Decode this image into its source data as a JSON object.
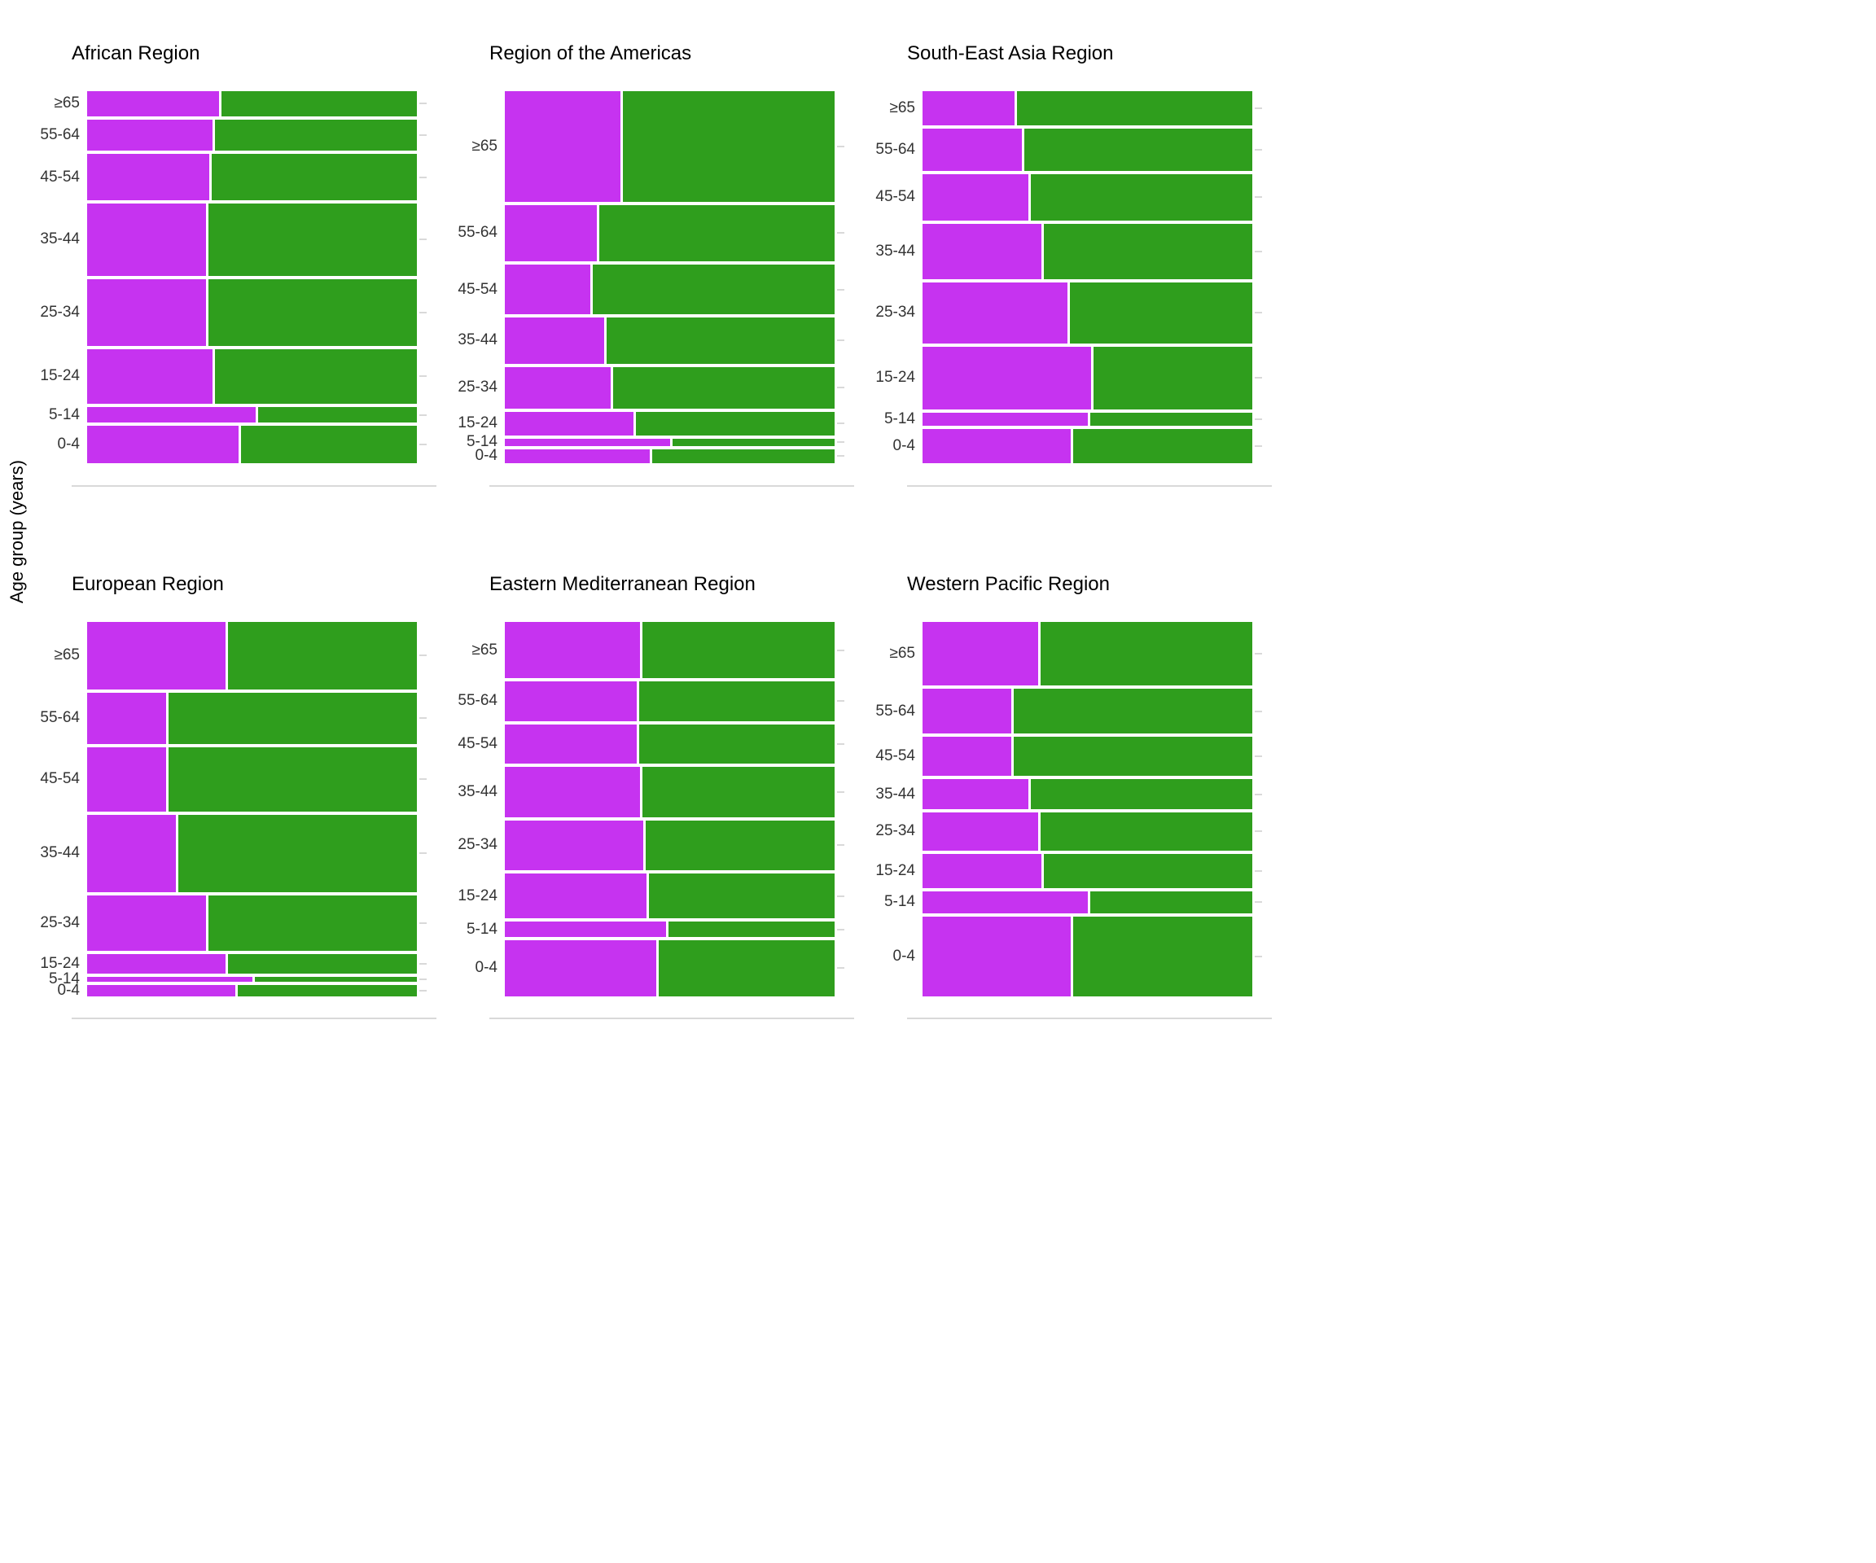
{
  "figure": {
    "ylabel": "Age group (years)",
    "colors": {
      "left_segment": "#C633F0",
      "right_segment": "#2F9E1D",
      "axis_text": "#333333",
      "grid": "#D9D9D9",
      "title_text": "#000000"
    }
  },
  "chart_data": {
    "type": "mosaic",
    "orientation": "horizontal-spine",
    "categories_top_to_bottom": [
      "≥65",
      "55-64",
      "45-54",
      "35-44",
      "25-34",
      "15-24",
      "5-14",
      "0-4"
    ],
    "segment_series": [
      "left-purple-share",
      "right-green-share"
    ],
    "panels": [
      {
        "title": "African Region",
        "row_height_fractions": [
          0.075,
          0.091,
          0.13,
          0.2,
          0.185,
          0.152,
          0.05,
          0.107
        ],
        "left_segment_fractions": [
          0.4,
          0.38,
          0.37,
          0.36,
          0.36,
          0.38,
          0.51,
          0.46
        ]
      },
      {
        "title": "Region of the Americas",
        "row_height_fractions": [
          0.3,
          0.158,
          0.14,
          0.13,
          0.118,
          0.072,
          0.027,
          0.046
        ],
        "left_segment_fractions": [
          0.35,
          0.28,
          0.26,
          0.3,
          0.32,
          0.39,
          0.5,
          0.44
        ]
      },
      {
        "title": "South-East Asia Region",
        "row_height_fractions": [
          0.098,
          0.122,
          0.13,
          0.155,
          0.17,
          0.175,
          0.042,
          0.1
        ],
        "left_segment_fractions": [
          0.28,
          0.3,
          0.32,
          0.36,
          0.44,
          0.51,
          0.5,
          0.45
        ]
      },
      {
        "title": "European Region",
        "row_height_fractions": [
          0.186,
          0.143,
          0.178,
          0.212,
          0.154,
          0.062,
          0.021,
          0.038
        ],
        "left_segment_fractions": [
          0.42,
          0.24,
          0.24,
          0.27,
          0.36,
          0.42,
          0.5,
          0.45
        ]
      },
      {
        "title": "Eastern Mediterranean Region",
        "row_height_fractions": [
          0.157,
          0.113,
          0.113,
          0.14,
          0.14,
          0.128,
          0.048,
          0.157
        ],
        "left_segment_fractions": [
          0.41,
          0.4,
          0.4,
          0.41,
          0.42,
          0.43,
          0.49,
          0.46
        ]
      },
      {
        "title": "Western Pacific Region",
        "row_height_fractions": [
          0.176,
          0.128,
          0.112,
          0.088,
          0.108,
          0.1,
          0.066,
          0.22
        ],
        "left_segment_fractions": [
          0.35,
          0.27,
          0.27,
          0.32,
          0.35,
          0.36,
          0.5,
          0.45
        ]
      }
    ]
  }
}
